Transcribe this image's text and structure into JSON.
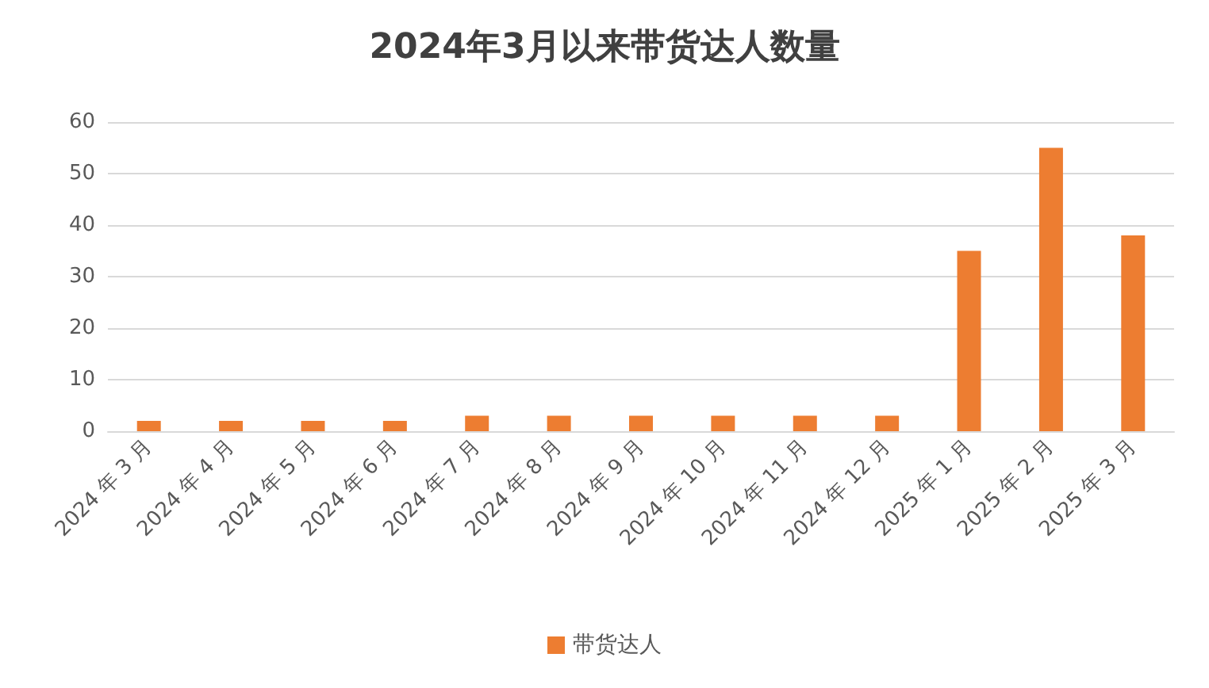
{
  "chart_data": {
    "type": "bar",
    "title": "2024年3月以来带货达人数量",
    "categories": [
      "2024 年 3 月",
      "2024 年 4 月",
      "2024 年 5 月",
      "2024 年 6 月",
      "2024 年 7 月",
      "2024 年 8 月",
      "2024 年 9 月",
      "2024 年 10 月",
      "2024 年 11 月",
      "2024 年 12 月",
      "2025 年 1 月",
      "2025 年 2 月",
      "2025 年 3 月"
    ],
    "series": [
      {
        "name": "带货达人",
        "color": "#ed7d31",
        "values": [
          2,
          2,
          2,
          2,
          3,
          3,
          3,
          3,
          3,
          3,
          35,
          55,
          38
        ]
      }
    ],
    "ylim": [
      0,
      60
    ],
    "yticks": [
      0,
      10,
      20,
      30,
      40,
      50,
      60
    ],
    "grid": "y",
    "legend": "bottom"
  }
}
